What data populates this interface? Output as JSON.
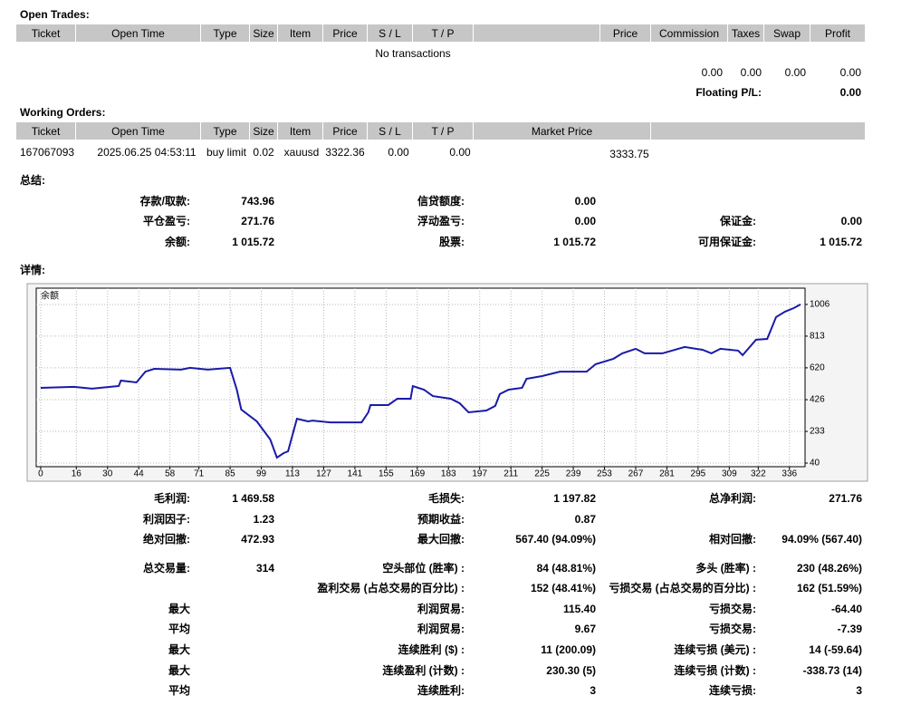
{
  "open_trades": {
    "title": "Open Trades:",
    "headers": [
      "Ticket",
      "Open Time",
      "Type",
      "Size",
      "Item",
      "Price",
      "S / L",
      "T / P",
      "Price",
      "Commission",
      "Taxes",
      "Swap",
      "Profit"
    ],
    "empty_text": "No transactions",
    "totals": [
      "0.00",
      "0.00",
      "0.00",
      "0.00"
    ],
    "floating_label": "Floating P/L:",
    "floating_value": "0.00"
  },
  "working_orders": {
    "title": "Working Orders:",
    "headers": [
      "Ticket",
      "Open Time",
      "Type",
      "Size",
      "Item",
      "Price",
      "S / L",
      "T / P",
      "Market Price"
    ],
    "row": [
      "167067093",
      "2025.06.25 04:53:11",
      "buy limit",
      "0.02",
      "xauusd",
      "3322.36",
      "0.00",
      "0.00",
      "3333.75"
    ]
  },
  "summary": {
    "title": "总结:",
    "rows": [
      [
        {
          "label": "存款/取款:",
          "value": "743.96"
        },
        {
          "label": "信贷额度:",
          "value": "0.00"
        },
        null
      ],
      [
        {
          "label": "平仓盈亏:",
          "value": "271.76"
        },
        {
          "label": "浮动盈亏:",
          "value": "0.00"
        },
        {
          "label": "保证金:",
          "value": "0.00"
        }
      ],
      [
        {
          "label": "余额:",
          "value": "1 015.72"
        },
        {
          "label": "股票:",
          "value": "1 015.72"
        },
        {
          "label": "可用保证金:",
          "value": "1 015.72"
        }
      ]
    ]
  },
  "details": {
    "title": "详情:"
  },
  "chart_data": {
    "type": "line",
    "label": "余额",
    "color": "#1a1aa8",
    "x": [
      0,
      15,
      23,
      35,
      36,
      43,
      47,
      51,
      63,
      67,
      75,
      85,
      88,
      90,
      97,
      103,
      106,
      109,
      111,
      113,
      115,
      120,
      122,
      130,
      144,
      147,
      148,
      156,
      160,
      166,
      167,
      172,
      176,
      184,
      188,
      192,
      200,
      204,
      206,
      210,
      216,
      218,
      225,
      233,
      245,
      249,
      257,
      261,
      267,
      271,
      279,
      289,
      297,
      301,
      305,
      313,
      315,
      321,
      326,
      330,
      334,
      338,
      341
    ],
    "values": [
      498,
      504,
      493,
      509,
      542,
      531,
      597,
      614,
      609,
      620,
      609,
      620,
      487,
      366,
      294,
      184,
      73,
      101,
      112,
      211,
      310,
      294,
      299,
      288,
      288,
      349,
      393,
      393,
      432,
      432,
      509,
      487,
      448,
      432,
      404,
      349,
      360,
      388,
      460,
      487,
      498,
      553,
      570,
      597,
      597,
      642,
      675,
      708,
      736,
      708,
      708,
      747,
      730,
      708,
      736,
      725,
      697,
      791,
      796,
      929,
      962,
      984,
      1006
    ],
    "xlim": [
      -2,
      343
    ],
    "ylim": [
      18,
      1105
    ],
    "xticks": [
      0,
      16,
      30,
      44,
      58,
      71,
      85,
      99,
      113,
      127,
      141,
      155,
      169,
      183,
      197,
      211,
      225,
      239,
      253,
      267,
      281,
      295,
      309,
      322,
      336
    ],
    "yticks": [
      40,
      233,
      426,
      620,
      813,
      1006
    ],
    "grid": true
  },
  "stats": {
    "rows": [
      [
        {
          "label": "毛利润:",
          "value": "1 469.58"
        },
        {
          "label": "毛损失:",
          "value": "1 197.82"
        },
        {
          "label": "总净利润:",
          "value": "271.76"
        }
      ],
      [
        {
          "label": "利润因子:",
          "value": "1.23"
        },
        {
          "label": "预期收益:",
          "value": "0.87"
        },
        null
      ],
      [
        {
          "label": "绝对回撤:",
          "value": "472.93"
        },
        {
          "label": "最大回撤:",
          "value": "567.40 (94.09%)"
        },
        {
          "label": "相对回撤:",
          "value": "94.09% (567.40)"
        }
      ],
      [
        {
          "label": "总交易量:",
          "value": "314"
        },
        {
          "label": "空头部位 (胜率) :",
          "value": "84 (48.81%)"
        },
        {
          "label": "多头 (胜率) :",
          "value": "230 (48.26%)"
        }
      ],
      [
        null,
        {
          "label": "盈利交易 (占总交易的百分比) :",
          "value": "152 (48.41%)"
        },
        {
          "label": "亏损交易 (占总交易的百分比) :",
          "value": "162 (51.59%)"
        }
      ],
      [
        {
          "label": "最大"
        },
        {
          "label": "利润贸易:",
          "value": "115.40"
        },
        {
          "label": "亏损交易:",
          "value": "-64.40"
        }
      ],
      [
        {
          "label": "平均"
        },
        {
          "label": "利润贸易:",
          "value": "9.67"
        },
        {
          "label": "亏损交易:",
          "value": "-7.39"
        }
      ],
      [
        {
          "label": "最大"
        },
        {
          "label": "连续胜利 ($) :",
          "value": "11 (200.09)"
        },
        {
          "label": "连续亏损 (美元) :",
          "value": "14 (-59.64)"
        }
      ],
      [
        {
          "label": "最大"
        },
        {
          "label": "连续盈利 (计数) :",
          "value": "230.30 (5)"
        },
        {
          "label": "连续亏损 (计数) :",
          "value": "-338.73 (14)"
        }
      ],
      [
        {
          "label": "平均"
        },
        {
          "label": "连续胜利:",
          "value": "3"
        },
        {
          "label": "连续亏损:",
          "value": "3"
        }
      ]
    ]
  }
}
